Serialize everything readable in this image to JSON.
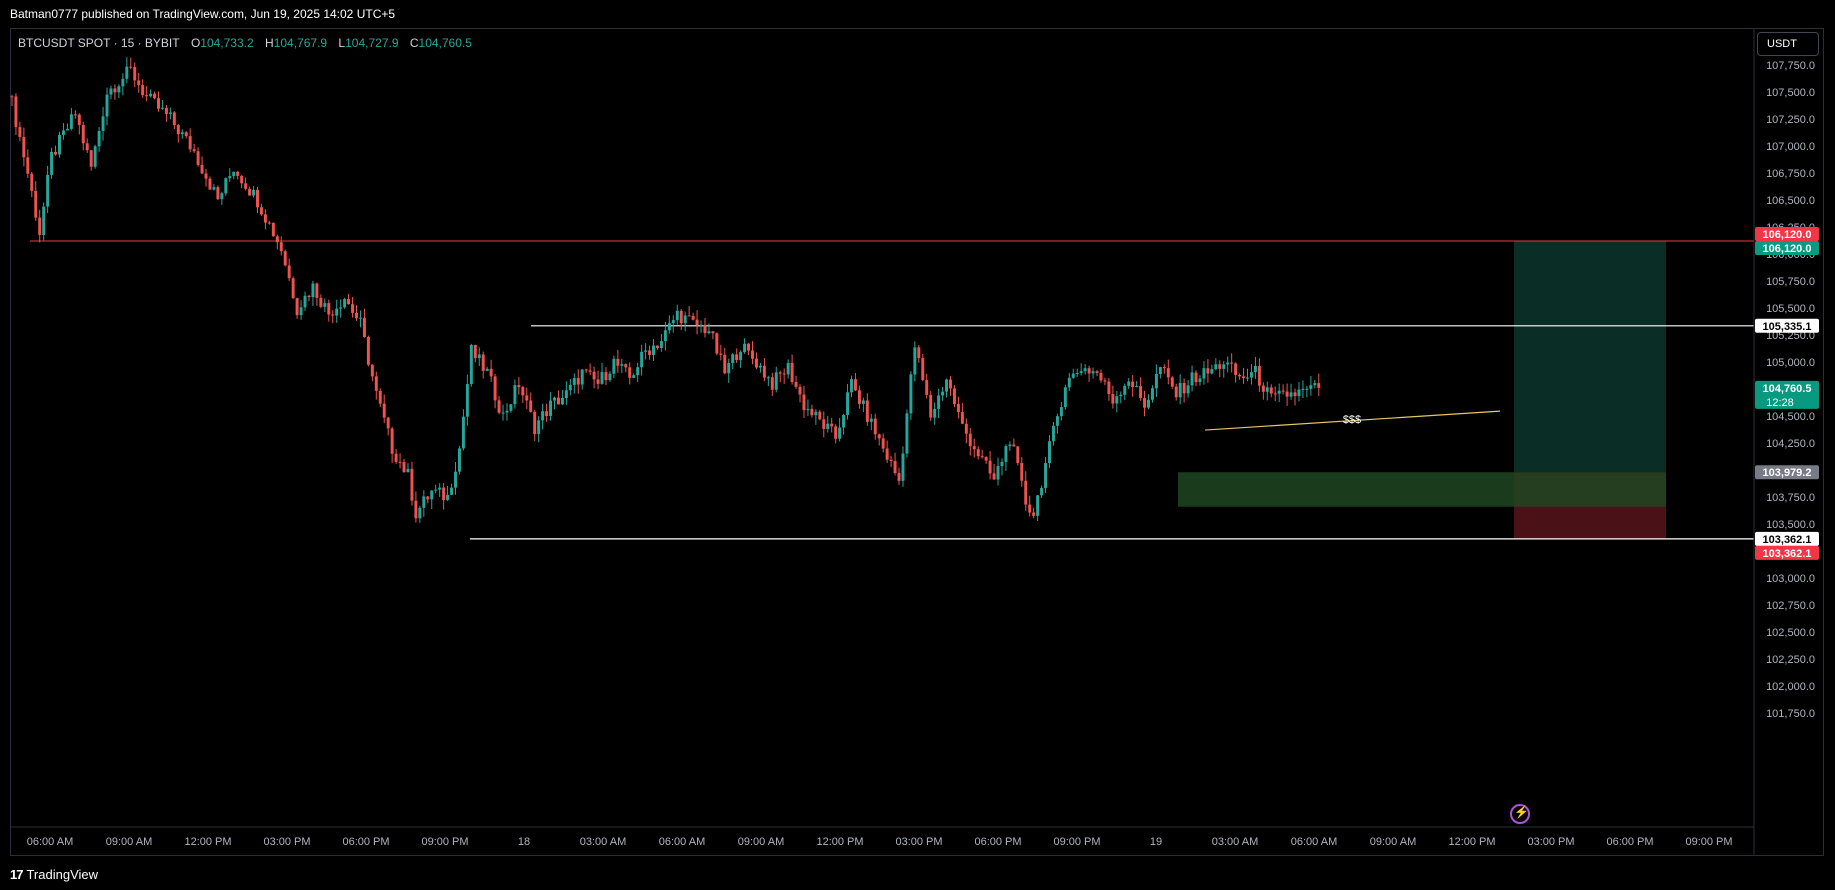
{
  "header": {
    "publisher": "Batman0777 published on TradingView.com, Jun 19, 2025 14:02 UTC+5"
  },
  "legend": {
    "symbol": "BTCUSDT SPOT · 15 · BYBIT",
    "open_label": "O",
    "open": "104,733.2",
    "high_label": "H",
    "high": "104,767.9",
    "low_label": "L",
    "low": "104,727.9",
    "close_label": "C",
    "close": "104,760.5"
  },
  "currency": "USDT",
  "footer": {
    "brand": "TradingView",
    "brand_mark": "17"
  },
  "colors": {
    "up": "#26a69a",
    "down": "#ef5350",
    "background": "#000000",
    "target_zone": "#0a2e26",
    "stop_zone": "#4a1216",
    "demand_zone": "#1f4722",
    "sweep_line": "#e8c766"
  },
  "icons": {
    "bolt": "bolt-icon"
  },
  "chart_data": {
    "type": "candlestick",
    "timeframe": "15",
    "x_ticks": [
      "06:00 AM",
      "09:00 AM",
      "12:00 PM",
      "03:00 PM",
      "06:00 PM",
      "09:00 PM",
      "18",
      "03:00 AM",
      "06:00 AM",
      "09:00 AM",
      "12:00 PM",
      "03:00 PM",
      "06:00 PM",
      "09:00 PM",
      "19",
      "03:00 AM",
      "06:00 AM",
      "09:00 AM",
      "12:00 PM",
      "03:00 PM",
      "06:00 PM",
      "09:00 PM"
    ],
    "y_ticks": [
      "107,750.0",
      "107,500.0",
      "107,250.0",
      "107,000.0",
      "106,750.0",
      "106,500.0",
      "106,250.0",
      "106,000.0",
      "105,750.0",
      "105,500.0",
      "105,250.0",
      "105,000.0",
      "104,750.0",
      "104,500.0",
      "104,250.0",
      "104,000.0",
      "103,750.0",
      "103,500.0",
      "103,250.0",
      "103,000.0",
      "102,750.0",
      "102,500.0",
      "102,250.0",
      "102,000.0",
      "101,750.0"
    ],
    "ylim": [
      101650,
      107950
    ],
    "price_path": [
      [
        0,
        107400
      ],
      [
        4,
        106750
      ],
      [
        7,
        106200
      ],
      [
        10,
        106900
      ],
      [
        16,
        107300
      ],
      [
        20,
        106800
      ],
      [
        24,
        107500
      ],
      [
        30,
        107700
      ],
      [
        34,
        107450
      ],
      [
        40,
        107250
      ],
      [
        46,
        106950
      ],
      [
        52,
        106500
      ],
      [
        56,
        106800
      ],
      [
        62,
        106500
      ],
      [
        68,
        106050
      ],
      [
        72,
        105500
      ],
      [
        76,
        105700
      ],
      [
        80,
        105450
      ],
      [
        84,
        105600
      ],
      [
        88,
        105350
      ],
      [
        92,
        104700
      ],
      [
        96,
        104200
      ],
      [
        100,
        103950
      ],
      [
        102,
        103600
      ],
      [
        106,
        103800
      ],
      [
        110,
        103750
      ],
      [
        113,
        104200
      ],
      [
        116,
        105100
      ],
      [
        120,
        104900
      ],
      [
        124,
        104500
      ],
      [
        128,
        104800
      ],
      [
        132,
        104400
      ],
      [
        136,
        104600
      ],
      [
        140,
        104700
      ],
      [
        144,
        104900
      ],
      [
        148,
        104800
      ],
      [
        152,
        105000
      ],
      [
        156,
        104850
      ],
      [
        160,
        105100
      ],
      [
        164,
        105200
      ],
      [
        168,
        105450
      ],
      [
        172,
        105350
      ],
      [
        176,
        105300
      ],
      [
        180,
        104900
      ],
      [
        184,
        105150
      ],
      [
        188,
        105000
      ],
      [
        192,
        104800
      ],
      [
        196,
        104950
      ],
      [
        200,
        104600
      ],
      [
        204,
        104450
      ],
      [
        208,
        104300
      ],
      [
        212,
        104800
      ],
      [
        216,
        104500
      ],
      [
        220,
        104200
      ],
      [
        224,
        103900
      ],
      [
        228,
        105150
      ],
      [
        232,
        104500
      ],
      [
        236,
        104850
      ],
      [
        240,
        104400
      ],
      [
        244,
        104150
      ],
      [
        248,
        103900
      ],
      [
        252,
        104300
      ],
      [
        256,
        103700
      ],
      [
        258,
        103600
      ],
      [
        262,
        104200
      ],
      [
        266,
        104800
      ],
      [
        270,
        104950
      ],
      [
        274,
        104900
      ],
      [
        278,
        104650
      ],
      [
        282,
        104850
      ],
      [
        286,
        104600
      ],
      [
        290,
        104950
      ],
      [
        294,
        104700
      ],
      [
        298,
        104850
      ],
      [
        302,
        104900
      ],
      [
        306,
        105000
      ],
      [
        310,
        104850
      ],
      [
        314,
        104900
      ],
      [
        318,
        104650
      ],
      [
        322,
        104700
      ],
      [
        326,
        104720
      ],
      [
        330,
        104760.5
      ]
    ],
    "horizontal_levels": [
      {
        "price": 106120.0,
        "label": "106,120.0",
        "tag_color": "#f23645"
      },
      {
        "price": 105335.1,
        "label": "105,335.1",
        "tag_color": "#ffffff"
      },
      {
        "price": 103362.1,
        "label": "103,362.1",
        "tag_color": "#ffffff"
      }
    ],
    "price_tags": [
      {
        "price": 106120.0,
        "label": "106,120.0",
        "bg": "#f23645",
        "fg": "#ffffff",
        "offset": -7
      },
      {
        "price": 106120.0,
        "label": "106,120.0",
        "bg": "#089981",
        "fg": "#ffffff",
        "offset": 7
      },
      {
        "price": 105335.1,
        "label": "105,335.1",
        "bg": "#ffffff",
        "fg": "#000000",
        "offset": 0
      },
      {
        "price": 104760.5,
        "label": "104,760.5",
        "sub": "12:28",
        "bg": "#089981",
        "fg": "#ffffff",
        "offset": 0
      },
      {
        "price": 103979.2,
        "label": "103,979.2",
        "bg": "#787b86",
        "fg": "#ffffff",
        "offset": 0
      },
      {
        "price": 103362.1,
        "label": "103,362.1",
        "bg": "#ffffff",
        "fg": "#000000",
        "offset": 0
      },
      {
        "price": 103362.1,
        "label": "103,362.1",
        "bg": "#f23645",
        "fg": "#ffffff",
        "offset": 14
      }
    ],
    "position": {
      "entry": 103979.2,
      "target": 106120.0,
      "stop": 103362.1
    },
    "demand_zone": {
      "top": 103979.2,
      "bottom": 103660.0
    },
    "annotation": {
      "text": "$$$",
      "price": 104470.0
    }
  }
}
